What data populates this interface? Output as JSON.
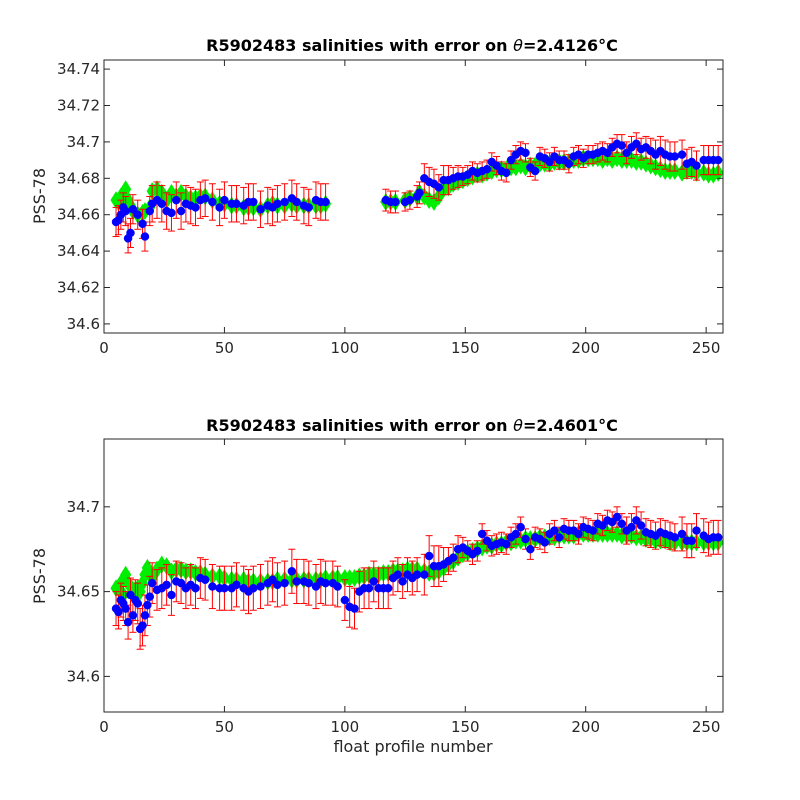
{
  "chart_data": [
    {
      "type": "scatter",
      "title_prefix": "R5902483 salinities with error on ",
      "title_symbol": "θ",
      "title_value": "=2.4126",
      "title_unit": "°C",
      "xlabel": "",
      "ylabel": "PSS-78",
      "xlim": [
        0,
        257
      ],
      "ylim": [
        34.595,
        34.745
      ],
      "xticks": [
        0,
        50,
        100,
        150,
        200,
        250
      ],
      "yticks": [
        34.6,
        34.62,
        34.64,
        34.66,
        34.68,
        34.7,
        34.72,
        34.74
      ],
      "ytick_labels": [
        "34.6",
        "34.62",
        "34.64",
        "34.66",
        "34.68",
        "34.7",
        "34.72",
        "34.74"
      ],
      "grid": false,
      "colors": {
        "float": "#0000ff",
        "mapped": "#00ee00",
        "error": "#ff0000"
      },
      "series": [
        {
          "x": [
            5,
            6,
            7,
            8,
            9,
            10,
            11,
            12,
            14,
            16,
            17,
            19,
            20,
            22,
            24,
            26,
            28,
            30,
            32,
            34,
            36,
            38,
            40,
            42,
            45,
            48,
            50,
            53,
            55,
            58,
            60,
            62,
            65,
            68,
            70,
            72,
            75,
            78,
            80,
            83,
            85,
            88,
            90,
            92,
            117,
            119,
            121,
            125,
            127,
            130,
            131,
            133,
            135,
            137,
            139,
            141,
            143,
            145,
            147,
            149,
            151,
            153,
            155,
            157,
            159,
            161,
            163,
            165,
            167,
            169,
            171,
            173,
            175,
            177,
            179,
            181,
            183,
            185,
            187,
            189,
            191,
            193,
            195,
            197,
            199,
            201,
            203,
            205,
            207,
            209,
            211,
            213,
            215,
            217,
            219,
            221,
            223,
            225,
            227,
            229,
            231,
            233,
            235,
            237,
            240,
            242,
            244,
            246,
            249,
            251,
            253,
            255
          ],
          "y": [
            34.656,
            34.657,
            34.66,
            34.664,
            34.662,
            34.647,
            34.65,
            34.663,
            34.66,
            34.655,
            34.648,
            34.662,
            34.666,
            34.668,
            34.666,
            34.662,
            34.661,
            34.668,
            34.662,
            34.666,
            34.665,
            34.664,
            34.668,
            34.669,
            34.667,
            34.664,
            34.668,
            34.666,
            34.666,
            34.665,
            34.667,
            34.667,
            34.663,
            34.665,
            34.664,
            34.666,
            34.667,
            34.669,
            34.667,
            34.665,
            34.664,
            34.668,
            34.667,
            34.667,
            34.668,
            34.667,
            34.667,
            34.667,
            34.668,
            34.67,
            34.672,
            34.68,
            34.678,
            34.677,
            34.675,
            34.679,
            34.679,
            34.68,
            34.681,
            34.681,
            34.682,
            34.684,
            34.683,
            34.684,
            34.685,
            34.689,
            34.687,
            34.684,
            34.683,
            34.69,
            34.693,
            34.695,
            34.694,
            34.686,
            34.684,
            34.692,
            34.691,
            34.689,
            34.692,
            34.69,
            34.69,
            34.688,
            34.692,
            34.693,
            34.691,
            34.693,
            34.693,
            34.694,
            34.695,
            34.694,
            34.697,
            34.699,
            34.698,
            34.694,
            34.697,
            34.699,
            34.696,
            34.697,
            34.695,
            34.693,
            34.695,
            34.693,
            34.692,
            34.692,
            34.693,
            34.688,
            34.689,
            34.687,
            34.69,
            34.69,
            34.69,
            34.69
          ],
          "err": [
            0.008,
            0.008,
            0.008,
            0.008,
            0.008,
            0.008,
            0.008,
            0.008,
            0.008,
            0.008,
            0.008,
            0.008,
            0.01,
            0.01,
            0.01,
            0.01,
            0.01,
            0.01,
            0.01,
            0.01,
            0.01,
            0.01,
            0.01,
            0.01,
            0.01,
            0.01,
            0.01,
            0.01,
            0.01,
            0.01,
            0.01,
            0.01,
            0.01,
            0.01,
            0.01,
            0.01,
            0.01,
            0.01,
            0.01,
            0.01,
            0.01,
            0.01,
            0.01,
            0.01,
            0.006,
            0.006,
            0.006,
            0.005,
            0.005,
            0.006,
            0.006,
            0.008,
            0.008,
            0.008,
            0.007,
            0.008,
            0.008,
            0.006,
            0.006,
            0.005,
            0.005,
            0.005,
            0.005,
            0.005,
            0.005,
            0.005,
            0.005,
            0.005,
            0.005,
            0.005,
            0.005,
            0.005,
            0.005,
            0.005,
            0.005,
            0.005,
            0.005,
            0.005,
            0.005,
            0.005,
            0.005,
            0.005,
            0.005,
            0.005,
            0.005,
            0.005,
            0.005,
            0.005,
            0.005,
            0.005,
            0.005,
            0.005,
            0.006,
            0.006,
            0.006,
            0.006,
            0.006,
            0.006,
            0.007,
            0.008,
            0.008,
            0.008,
            0.008,
            0.008,
            0.008,
            0.008,
            0.008,
            0.008,
            0.008,
            0.008,
            0.008,
            0.008
          ],
          "mapped": [
            34.668,
            34.667,
            34.67,
            34.666,
            34.674,
            34.668,
            34.665,
            34.662,
            34.66,
            34.661,
            34.662,
            34.664,
            34.673,
            34.674,
            34.672,
            34.668,
            34.672,
            34.67,
            34.672,
            34.67,
            34.669,
            34.669,
            34.67,
            34.67,
            34.668,
            34.666,
            34.666,
            34.665,
            34.665,
            34.664,
            34.664,
            34.664,
            34.663,
            34.665,
            34.666,
            34.665,
            34.665,
            34.666,
            34.665,
            34.665,
            34.665,
            34.665,
            34.665,
            34.666,
            34.667,
            34.667,
            34.667,
            34.668,
            34.669,
            34.67,
            34.672,
            34.67,
            34.668,
            34.667,
            34.67,
            34.674,
            34.675,
            34.677,
            34.678,
            34.679,
            34.68,
            34.681,
            34.682,
            34.682,
            34.683,
            34.684,
            34.685,
            34.685,
            34.685,
            34.686,
            34.686,
            34.687,
            34.686,
            34.687,
            34.687,
            34.688,
            34.688,
            34.688,
            34.689,
            34.689,
            34.689,
            34.689,
            34.69,
            34.69,
            34.691,
            34.691,
            34.691,
            34.691,
            34.69,
            34.691,
            34.69,
            34.691,
            34.69,
            34.69,
            34.69,
            34.689,
            34.689,
            34.688,
            34.687,
            34.686,
            34.685,
            34.684,
            34.684,
            34.684,
            34.683,
            34.684,
            34.684,
            34.683,
            34.683,
            34.682,
            34.682,
            34.683
          ]
        }
      ]
    },
    {
      "type": "scatter",
      "title_prefix": "R5902483 salinities with error on ",
      "title_symbol": "θ",
      "title_value": "=2.4601",
      "title_unit": "°C",
      "xlabel": "float profile number",
      "ylabel": "PSS-78",
      "xlim": [
        0,
        257
      ],
      "ylim": [
        34.579,
        34.74
      ],
      "xticks": [
        0,
        50,
        100,
        150,
        200,
        250
      ],
      "yticks": [
        34.6,
        34.65,
        34.7
      ],
      "ytick_labels": [
        "34.6",
        "34.65",
        "34.7"
      ],
      "grid": false,
      "colors": {
        "float": "#0000ff",
        "mapped": "#00ee00",
        "error": "#ff0000"
      },
      "series": [
        {
          "x": [
            5,
            6,
            7,
            8,
            9,
            10,
            11,
            12,
            13,
            14,
            15,
            16,
            17,
            18,
            19,
            20,
            22,
            24,
            26,
            28,
            30,
            32,
            34,
            36,
            38,
            40,
            42,
            45,
            48,
            50,
            53,
            55,
            58,
            60,
            62,
            65,
            68,
            70,
            72,
            75,
            78,
            80,
            83,
            85,
            88,
            90,
            92,
            95,
            97,
            100,
            102,
            104,
            106,
            108,
            110,
            112,
            114,
            116,
            118,
            120,
            122,
            124,
            126,
            128,
            130,
            133,
            135,
            137,
            139,
            141,
            143,
            145,
            147,
            149,
            151,
            153,
            155,
            157,
            159,
            161,
            163,
            165,
            167,
            169,
            171,
            173,
            175,
            177,
            179,
            181,
            183,
            185,
            187,
            189,
            191,
            193,
            195,
            197,
            199,
            201,
            203,
            205,
            207,
            209,
            211,
            213,
            215,
            217,
            219,
            221,
            223,
            225,
            227,
            229,
            231,
            233,
            235,
            237,
            240,
            242,
            244,
            246,
            249,
            251,
            253,
            255
          ],
          "y": [
            34.64,
            34.638,
            34.645,
            34.643,
            34.64,
            34.632,
            34.648,
            34.636,
            34.645,
            34.643,
            34.628,
            34.63,
            34.636,
            34.642,
            34.647,
            34.655,
            34.651,
            34.652,
            34.654,
            34.648,
            34.656,
            34.655,
            34.652,
            34.654,
            34.652,
            34.658,
            34.657,
            34.653,
            34.652,
            34.652,
            34.652,
            34.654,
            34.652,
            34.65,
            34.652,
            34.653,
            34.655,
            34.657,
            34.654,
            34.655,
            34.662,
            34.656,
            34.656,
            34.655,
            34.653,
            34.656,
            34.655,
            34.655,
            34.653,
            34.645,
            34.641,
            34.64,
            34.65,
            34.652,
            34.652,
            34.656,
            34.652,
            34.652,
            34.652,
            34.658,
            34.66,
            34.656,
            34.66,
            34.658,
            34.66,
            34.66,
            34.671,
            34.665,
            34.665,
            34.666,
            34.668,
            34.67,
            34.675,
            34.676,
            34.674,
            34.672,
            34.674,
            34.684,
            34.68,
            34.677,
            34.678,
            34.679,
            34.678,
            34.682,
            34.684,
            34.688,
            34.681,
            34.675,
            34.682,
            34.681,
            34.679,
            34.684,
            34.686,
            34.682,
            34.687,
            34.686,
            34.686,
            34.684,
            34.688,
            34.687,
            34.686,
            34.69,
            34.689,
            34.692,
            34.691,
            34.694,
            34.69,
            34.686,
            34.688,
            34.692,
            34.689,
            34.685,
            34.684,
            34.683,
            34.685,
            34.684,
            34.683,
            34.682,
            34.684,
            34.68,
            34.68,
            34.686,
            34.683,
            34.681,
            34.682,
            34.682
          ],
          "err": [
            0.01,
            0.01,
            0.01,
            0.01,
            0.01,
            0.01,
            0.01,
            0.01,
            0.012,
            0.012,
            0.012,
            0.012,
            0.012,
            0.012,
            0.012,
            0.012,
            0.012,
            0.012,
            0.012,
            0.012,
            0.012,
            0.012,
            0.012,
            0.012,
            0.012,
            0.012,
            0.012,
            0.013,
            0.013,
            0.013,
            0.013,
            0.013,
            0.013,
            0.013,
            0.013,
            0.013,
            0.013,
            0.013,
            0.013,
            0.013,
            0.013,
            0.013,
            0.013,
            0.013,
            0.013,
            0.013,
            0.013,
            0.013,
            0.012,
            0.012,
            0.012,
            0.012,
            0.012,
            0.012,
            0.012,
            0.012,
            0.012,
            0.012,
            0.012,
            0.01,
            0.01,
            0.01,
            0.01,
            0.01,
            0.01,
            0.012,
            0.012,
            0.012,
            0.012,
            0.01,
            0.008,
            0.008,
            0.008,
            0.006,
            0.006,
            0.006,
            0.006,
            0.006,
            0.006,
            0.006,
            0.006,
            0.006,
            0.006,
            0.006,
            0.006,
            0.006,
            0.006,
            0.006,
            0.006,
            0.006,
            0.006,
            0.006,
            0.006,
            0.006,
            0.006,
            0.006,
            0.006,
            0.006,
            0.006,
            0.006,
            0.006,
            0.006,
            0.006,
            0.006,
            0.006,
            0.006,
            0.006,
            0.008,
            0.008,
            0.008,
            0.008,
            0.008,
            0.008,
            0.008,
            0.008,
            0.008,
            0.008,
            0.008,
            0.01,
            0.01,
            0.01,
            0.01,
            0.01,
            0.01,
            0.01,
            0.01
          ],
          "mapped": [
            34.652,
            34.652,
            34.655,
            34.648,
            34.66,
            34.655,
            34.653,
            34.651,
            34.651,
            34.652,
            34.65,
            34.655,
            34.66,
            34.664,
            34.66,
            34.658,
            34.663,
            34.666,
            34.665,
            34.662,
            34.663,
            34.663,
            34.662,
            34.662,
            34.661,
            34.661,
            34.66,
            34.659,
            34.659,
            34.658,
            34.657,
            34.657,
            34.657,
            34.656,
            34.656,
            34.656,
            34.656,
            34.656,
            34.657,
            34.657,
            34.657,
            34.657,
            34.657,
            34.657,
            34.657,
            34.657,
            34.658,
            34.658,
            34.658,
            34.658,
            34.658,
            34.658,
            34.659,
            34.659,
            34.66,
            34.66,
            34.66,
            34.661,
            34.661,
            34.662,
            34.662,
            34.662,
            34.663,
            34.663,
            34.663,
            34.662,
            34.661,
            34.661,
            34.662,
            34.664,
            34.666,
            34.668,
            34.67,
            34.672,
            34.673,
            34.674,
            34.675,
            34.676,
            34.677,
            34.677,
            34.678,
            34.678,
            34.679,
            34.679,
            34.68,
            34.68,
            34.681,
            34.681,
            34.681,
            34.682,
            34.682,
            34.682,
            34.682,
            34.683,
            34.683,
            34.683,
            34.683,
            34.684,
            34.684,
            34.684,
            34.684,
            34.684,
            34.684,
            34.684,
            34.684,
            34.684,
            34.683,
            34.683,
            34.683,
            34.682,
            34.682,
            34.681,
            34.681,
            34.68,
            34.68,
            34.68,
            34.679,
            34.679,
            34.679,
            34.679,
            34.679,
            34.679,
            34.679,
            34.679,
            34.679,
            34.679
          ]
        }
      ]
    }
  ]
}
